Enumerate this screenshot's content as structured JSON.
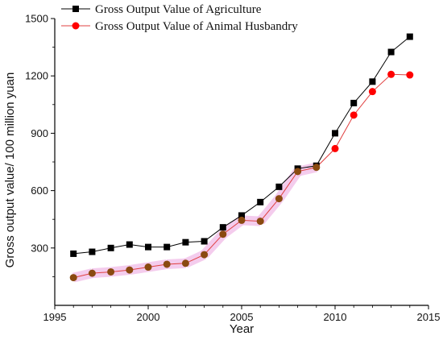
{
  "chart_data": {
    "type": "line",
    "xlabel": "Year",
    "ylabel": "Gross output value/ 100 million yuan",
    "xlim": [
      1995,
      2015
    ],
    "ylim": [
      0,
      1500
    ],
    "x_ticks": [
      1995,
      2000,
      2005,
      2010,
      2015
    ],
    "y_ticks": [
      300,
      600,
      900,
      1200,
      1500
    ],
    "grid": false,
    "legend_position": "top-left",
    "series": [
      {
        "name": "Gross Output Value of Agriculture",
        "marker": "square",
        "color": "#000000",
        "line_color": "#000000",
        "x": [
          1996,
          1997,
          1998,
          1999,
          2000,
          2001,
          2002,
          2003,
          2004,
          2005,
          2006,
          2007,
          2008,
          2009,
          2010,
          2011,
          2012,
          2013,
          2014
        ],
        "y": [
          270,
          280,
          300,
          318,
          305,
          305,
          330,
          335,
          408,
          470,
          540,
          620,
          715,
          730,
          900,
          1058,
          1170,
          1325,
          1405
        ]
      },
      {
        "name": "Gross Output Value of Animal Husbandry",
        "marker": "circle",
        "color": "#ff0000",
        "line_color": "#e04040",
        "x": [
          1996,
          1997,
          1998,
          1999,
          2000,
          2001,
          2002,
          2003,
          2004,
          2005,
          2006,
          2007,
          2008,
          2009,
          2010,
          2011,
          2012,
          2013,
          2014
        ],
        "y": [
          145,
          168,
          175,
          185,
          200,
          215,
          220,
          265,
          372,
          445,
          440,
          558,
          700,
          722,
          820,
          995,
          1118,
          1208,
          1205
        ]
      }
    ],
    "highlight_color": "#f0b6e6",
    "overlap_marker_color": "#8a4a10"
  }
}
